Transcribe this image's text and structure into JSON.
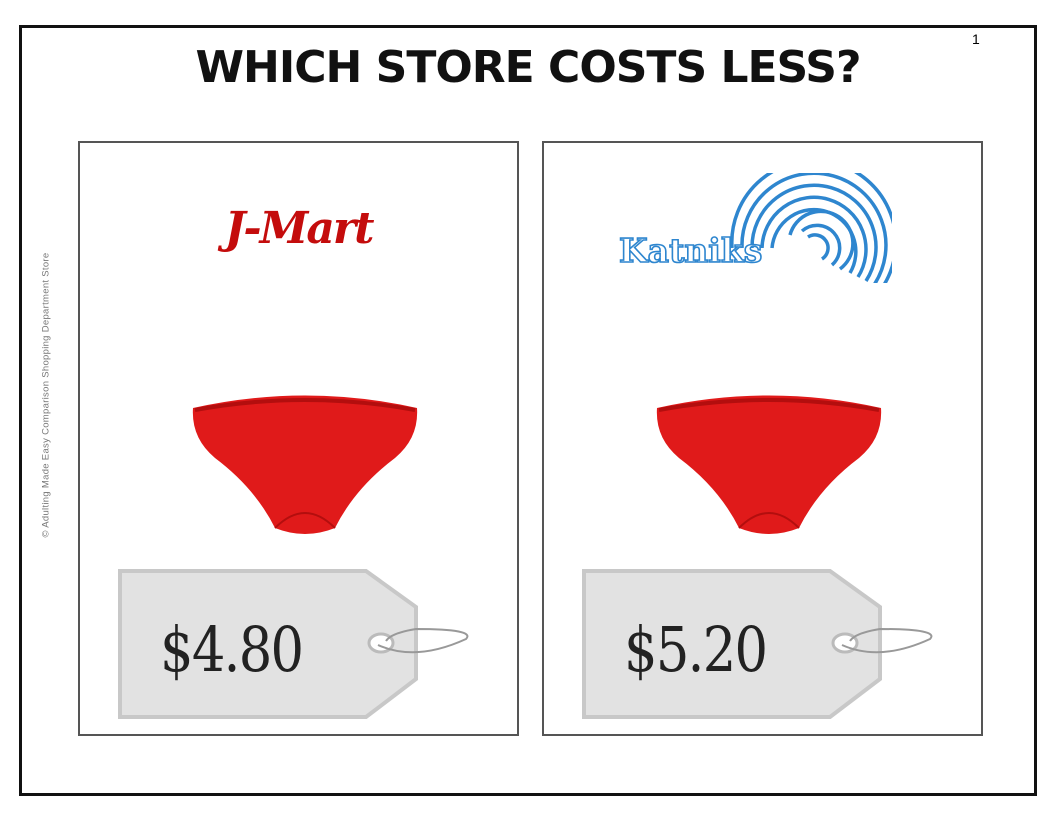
{
  "page_number": "1",
  "title": "WHICH STORE COSTS LESS?",
  "copyright": "© Adulting Made Easy Comparison Shopping Department Store",
  "stores": [
    {
      "name": "J-Mart",
      "brand_color": "#c40c0c",
      "item_icon": "red-underwear-icon",
      "price": "$4.80"
    },
    {
      "name": "Katniks",
      "brand_color": "#2e86cf",
      "item_icon": "red-underwear-icon",
      "price": "$5.20"
    }
  ]
}
